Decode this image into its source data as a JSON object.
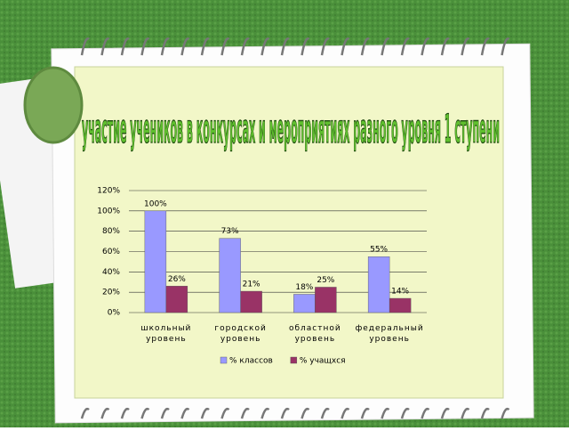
{
  "chart_data": {
    "type": "bar",
    "title": "участие учеников в конкурсах и мероприятиях разного уровня 1 ступени",
    "categories": [
      "школьный уровень",
      "городской уровень",
      "областной уровень",
      "федеральный уровень"
    ],
    "series": [
      {
        "name": "% классов",
        "color": "#9999ff",
        "values": [
          100,
          73,
          18,
          55
        ],
        "value_labels": [
          "100%",
          "73%",
          "18%",
          "55%"
        ]
      },
      {
        "name": "% учащхся",
        "color": "#993366",
        "values": [
          26,
          21,
          25,
          14
        ],
        "value_labels": [
          "26%",
          "21%",
          "25%",
          "14%"
        ]
      }
    ],
    "ylim": [
      0,
      120
    ],
    "yticks": [
      {
        "value": 0,
        "label": "0%"
      },
      {
        "value": 20,
        "label": "20%"
      },
      {
        "value": 40,
        "label": "40%"
      },
      {
        "value": 60,
        "label": "60%"
      },
      {
        "value": 80,
        "label": "80%"
      },
      {
        "value": 100,
        "label": "100%"
      },
      {
        "value": 120,
        "label": "120%"
      }
    ],
    "grid": true,
    "legend": "bottom"
  }
}
